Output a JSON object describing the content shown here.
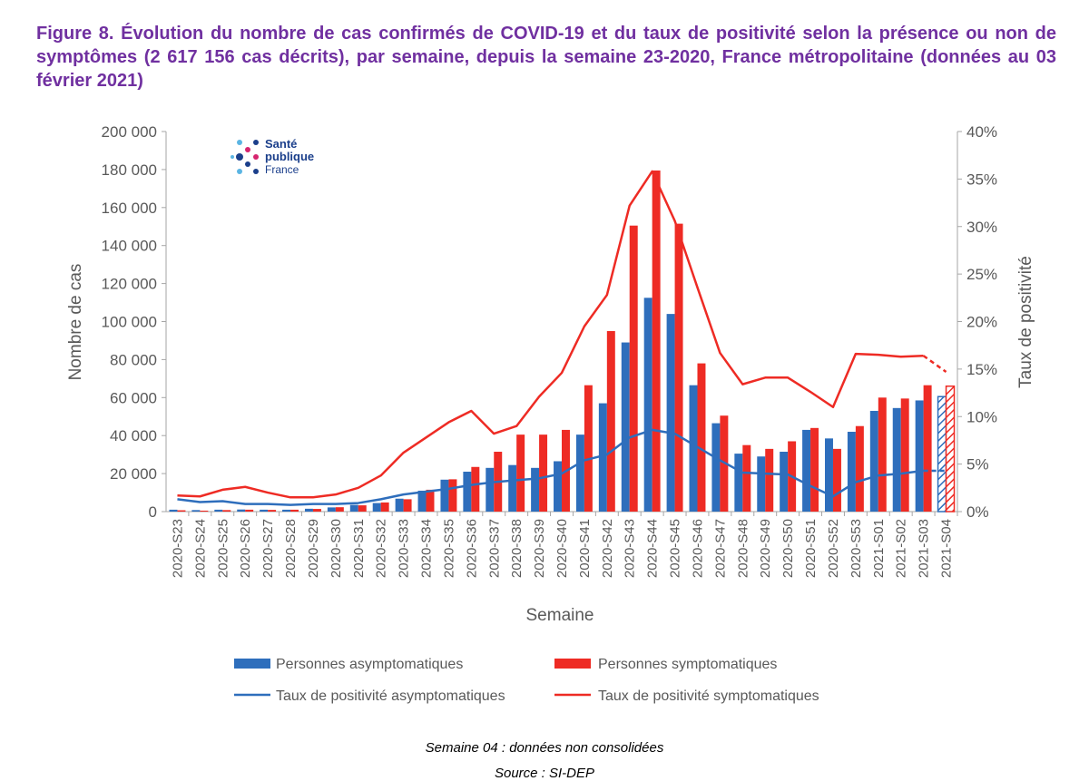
{
  "title": "Figure 8. Évolution du nombre de cas confirmés de COVID-19 et du taux de positivité selon la présence ou non de symptômes (2 617 156 cas décrits), par semaine, depuis la semaine 23-2020, France métropolitaine (données au 03 février 2021)",
  "logo": {
    "line1": "Santé",
    "line2": "publique",
    "line3": "France"
  },
  "footnote": "Semaine 04 : données non consolidées",
  "source": "Source : SI-DEP",
  "colors": {
    "asym": "#2e6ebc",
    "sym": "#ee2b24",
    "title": "#7030a0",
    "logo_blue": "#1b3f8b",
    "logo_pink": "#d6246e",
    "logo_light": "#5bb5e3"
  },
  "chart_data": {
    "type": "bar",
    "xlabel": "Semaine",
    "ylabel": "Nombre de cas",
    "y2label": "Taux de positivité",
    "ylim": [
      0,
      200000
    ],
    "y2lim": [
      0,
      40
    ],
    "yticks": [
      "0",
      "20 000",
      "40 000",
      "60 000",
      "80 000",
      "100 000",
      "120 000",
      "140 000",
      "160 000",
      "180 000",
      "200 000"
    ],
    "y2ticks": [
      "0%",
      "5%",
      "10%",
      "15%",
      "20%",
      "25%",
      "30%",
      "35%",
      "40%"
    ],
    "categories": [
      "2020-S23",
      "2020-S24",
      "2020-S25",
      "2020-S26",
      "2020-S27",
      "2020-S28",
      "2020-S29",
      "2020-S30",
      "2020-S31",
      "2020-S32",
      "2020-S33",
      "2020-S34",
      "2020-S35",
      "2020-S36",
      "2020-S37",
      "2020-S38",
      "2020-S39",
      "2020-S40",
      "2020-S41",
      "2020-S42",
      "2020-S43",
      "2020-S44",
      "2020-S45",
      "2020-S46",
      "2020-S47",
      "2020-S48",
      "2020-S49",
      "2020-S50",
      "2020-S51",
      "2020-S52",
      "2020-S53",
      "2021-S01",
      "2021-S02",
      "2021-S03",
      "2021-S04"
    ],
    "series": [
      {
        "name": "Personnes asymptomatiques",
        "kind": "bar",
        "axis": "left",
        "values": [
          1000,
          800,
          1000,
          1100,
          1000,
          1000,
          1500,
          2200,
          3500,
          4500,
          6800,
          11000,
          16800,
          21000,
          23000,
          24500,
          23000,
          26500,
          40500,
          57000,
          89000,
          112500,
          104000,
          66500,
          46500,
          30500,
          29000,
          31500,
          43000,
          38500,
          42000,
          53000,
          54500,
          58500,
          60500
        ]
      },
      {
        "name": "Personnes symptomatiques",
        "kind": "bar",
        "axis": "left",
        "values": [
          700,
          500,
          800,
          1000,
          900,
          1000,
          1400,
          2300,
          3300,
          4800,
          6500,
          11500,
          17000,
          23500,
          31500,
          40500,
          40500,
          43000,
          66500,
          95000,
          150500,
          179500,
          151500,
          78000,
          50500,
          35000,
          33000,
          37000,
          44000,
          33000,
          45000,
          60000,
          59500,
          66500,
          66000
        ]
      },
      {
        "name": "Taux de positivité asymptomatiques",
        "kind": "line",
        "axis": "right",
        "values": [
          1.3,
          1.0,
          1.1,
          0.8,
          0.8,
          0.7,
          0.8,
          0.8,
          0.9,
          1.3,
          1.8,
          2.1,
          2.4,
          2.8,
          3.1,
          3.3,
          3.5,
          4.0,
          5.4,
          6.0,
          7.8,
          8.6,
          8.2,
          6.8,
          5.4,
          4.1,
          4.0,
          3.9,
          2.7,
          1.6,
          3.1,
          3.8,
          4.0,
          4.3,
          4.3
        ]
      },
      {
        "name": "Taux de positivité symptomatiques",
        "kind": "line",
        "axis": "right",
        "values": [
          1.7,
          1.6,
          2.3,
          2.6,
          2.0,
          1.5,
          1.5,
          1.8,
          2.5,
          3.8,
          6.2,
          7.8,
          9.4,
          10.6,
          8.2,
          9.0,
          12.1,
          14.6,
          19.5,
          22.8,
          32.2,
          35.8,
          30.6,
          23.6,
          16.7,
          13.4,
          14.1,
          14.1,
          12.6,
          11.0,
          16.6,
          16.5,
          16.3,
          16.4,
          14.7
        ]
      }
    ],
    "last_week_provisional": true,
    "grid": false,
    "legend": "bottom"
  }
}
